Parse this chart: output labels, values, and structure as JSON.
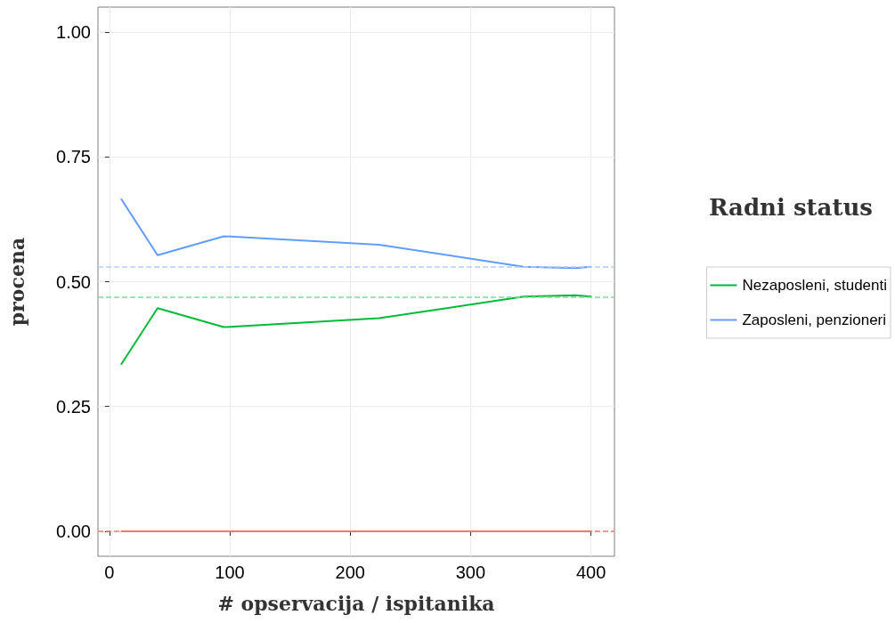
{
  "chart_data": {
    "type": "line",
    "xlabel": "# opservacija / ispitanika",
    "ylabel": "procena",
    "legend_title": "Radni status",
    "legend": "right",
    "grid": true,
    "line_style": "solid",
    "marker": "none",
    "xlim": [
      -9.5,
      419.5
    ],
    "xticks": [
      0,
      100,
      200,
      300,
      400
    ],
    "ylim": [
      -0.05,
      1.05
    ],
    "yticks": [
      {
        "value": 0,
        "label": "0.00"
      },
      {
        "value": 0.25,
        "label": "0.25"
      },
      {
        "value": 0.5,
        "label": "0.50"
      },
      {
        "value": 0.75,
        "label": "0.75"
      },
      {
        "value": 1,
        "label": "1.00"
      }
    ],
    "series": [
      {
        "color": "#f8766d",
        "x": [
          10,
          400
        ],
        "values": [
          0,
          0
        ]
      },
      {
        "name": "Nezaposleni, studenti",
        "color": "#00ba38",
        "x": [
          10,
          40,
          95,
          224,
          344,
          387,
          400
        ],
        "values": [
          0.335,
          0.447,
          0.409,
          0.427,
          0.47,
          0.473,
          0.47
        ]
      },
      {
        "name": "Zaposleni, penzioneri",
        "color": "#619cff",
        "x": [
          10,
          40,
          95,
          224,
          344,
          387,
          400
        ],
        "values": [
          0.665,
          0.553,
          0.591,
          0.574,
          0.53,
          0.527,
          0.53
        ]
      }
    ],
    "ref_lines": [
      {
        "axis": "y",
        "value": 0,
        "color": "#f8766d",
        "line_style": "dashed"
      },
      {
        "axis": "y",
        "value": 0.47,
        "color": "#7fdc9b",
        "line_style": "dashed"
      },
      {
        "axis": "y",
        "value": 0.53,
        "color": "#b0cdff",
        "line_style": "dashed"
      }
    ]
  }
}
